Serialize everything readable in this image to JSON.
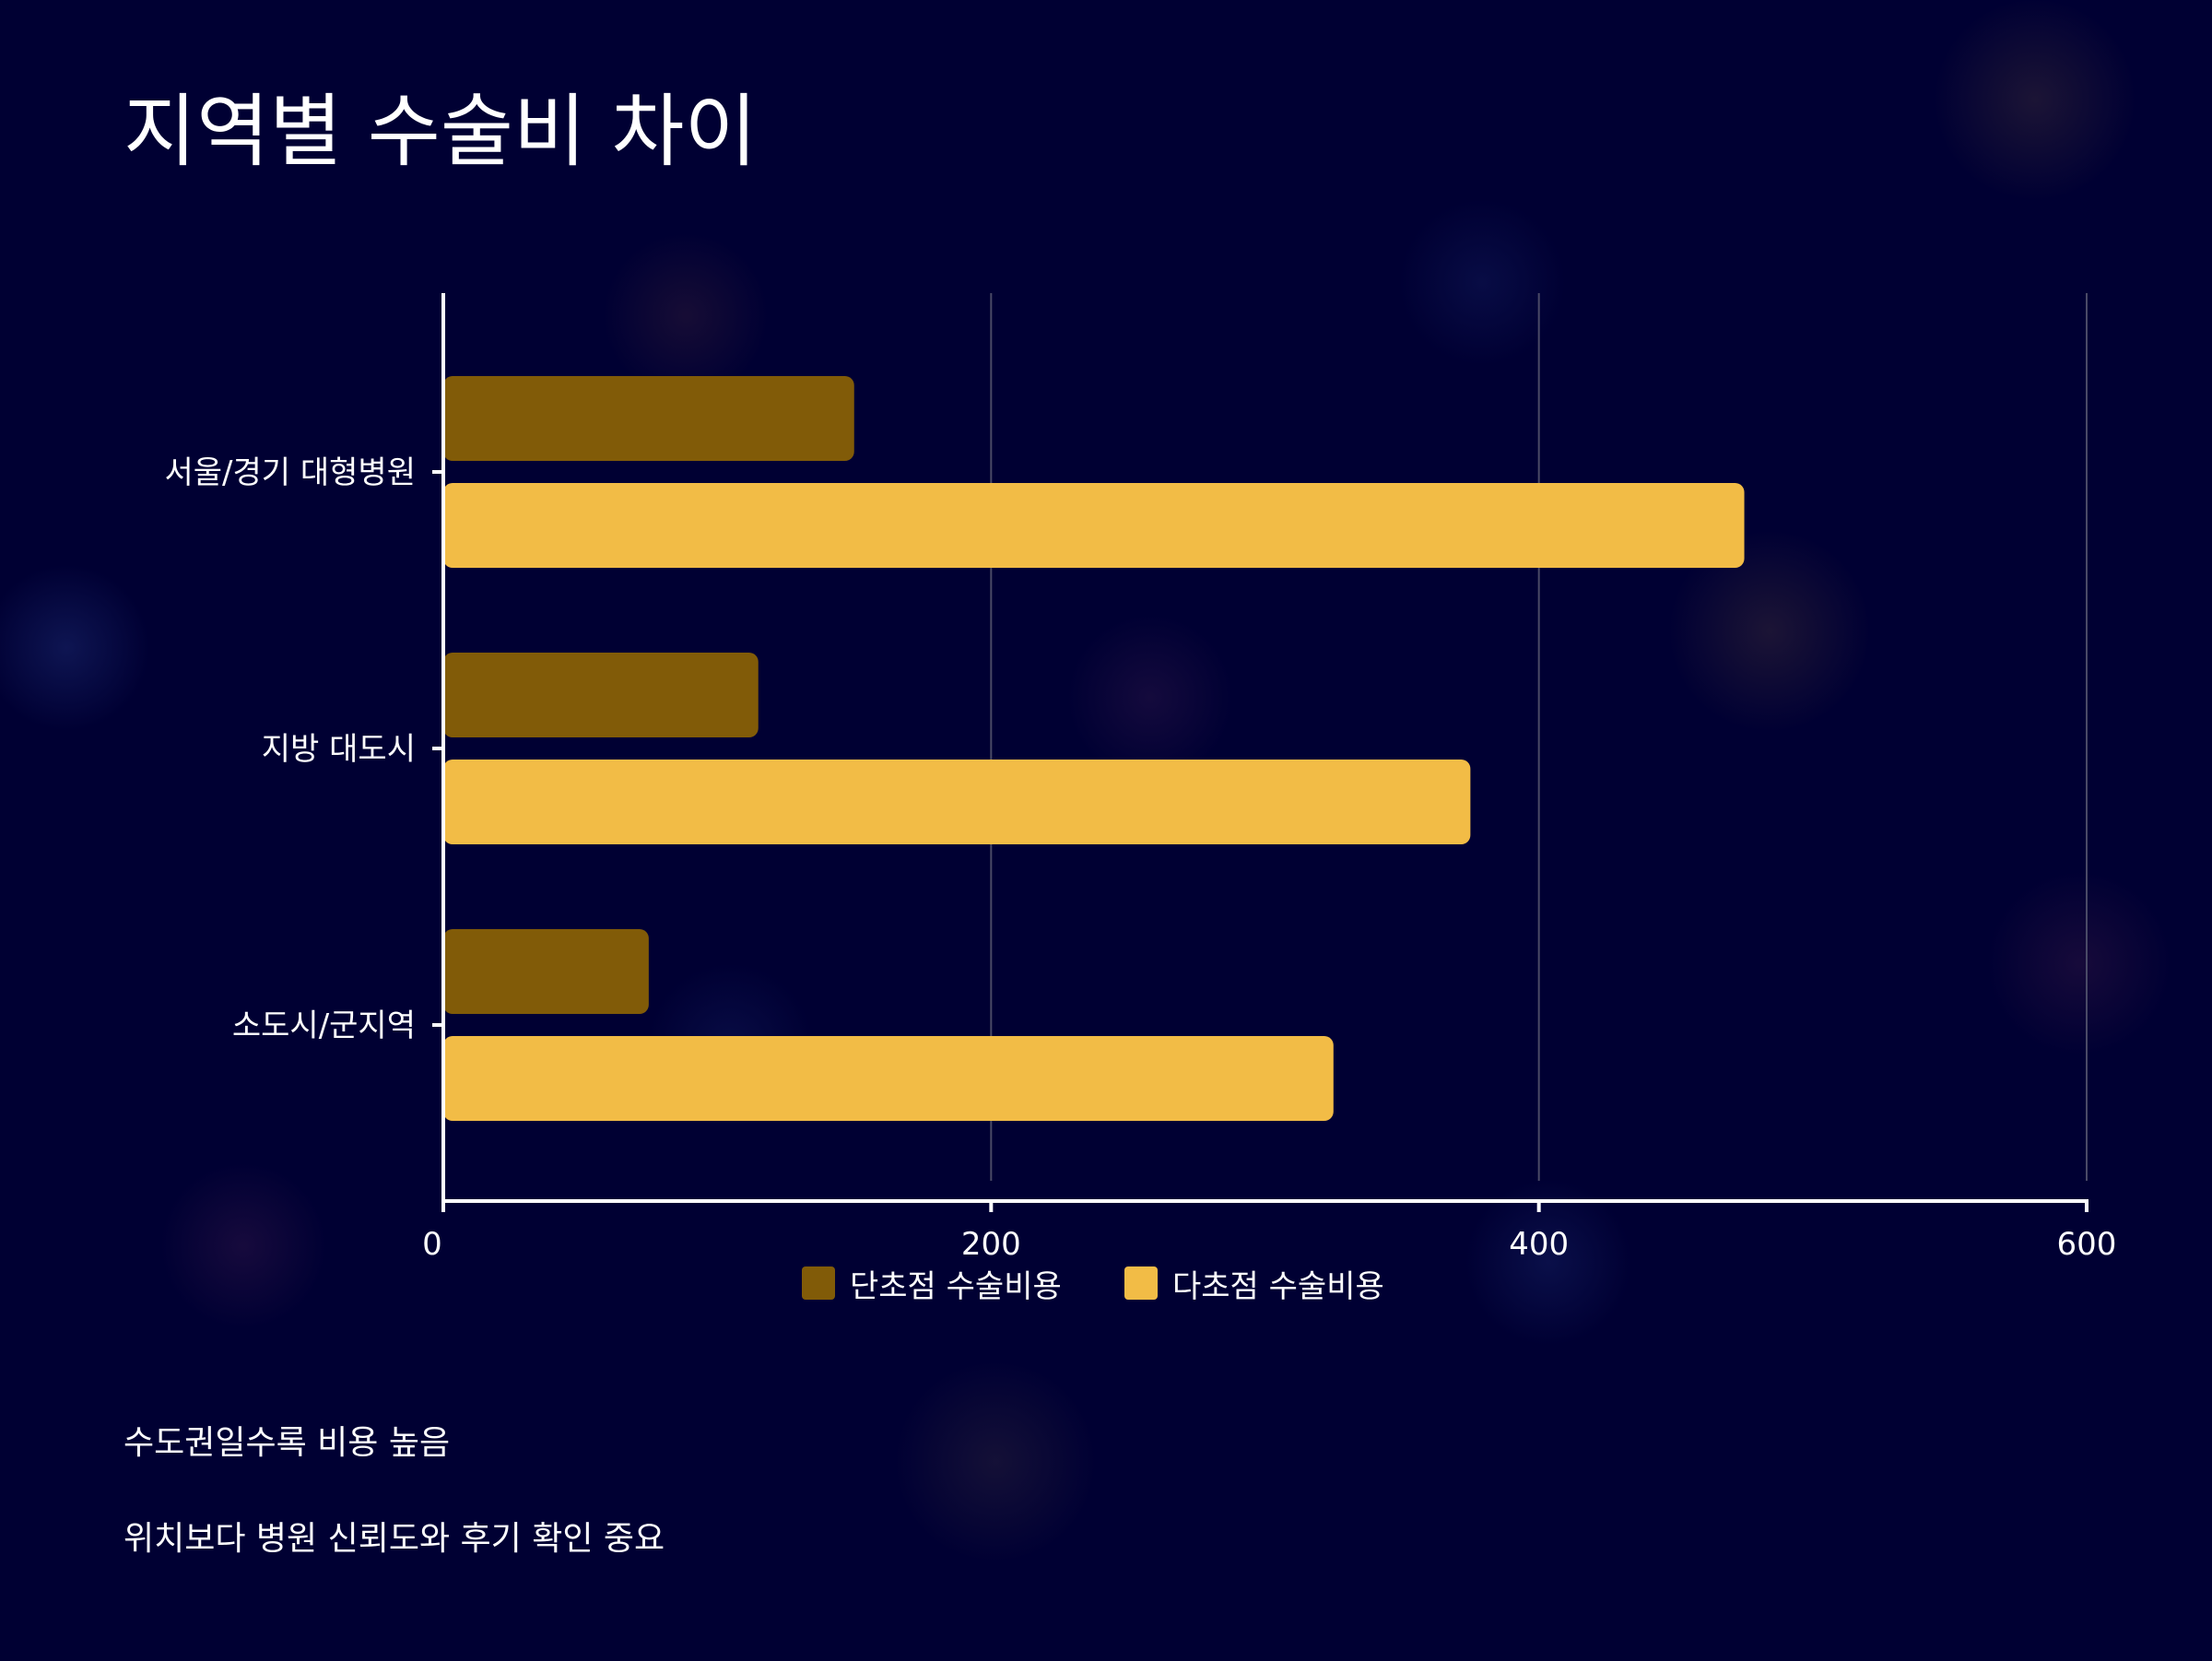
{
  "page": {
    "title": "지역별 수술비 차이",
    "notes": [
      "수도권일수록 비용 높음",
      "위치보다 병원 신뢰도와 후기 확인 중요"
    ]
  },
  "colors": {
    "background": "#000033",
    "single_focus": "#815b08",
    "multi_focus": "#f2bc46",
    "gridline": "#4a4a66",
    "axis": "#ffffff"
  },
  "chart_data": {
    "type": "bar",
    "orientation": "horizontal",
    "title": "",
    "xlabel": "",
    "ylabel": "",
    "categories": [
      "서울/경기 대형병원",
      "지방 대도시",
      "소도시/군지역"
    ],
    "series": [
      {
        "name": "단초점 수술비용",
        "color": "#815b08",
        "values": [
          150,
          115,
          75
        ]
      },
      {
        "name": "다초점 수술비용",
        "color": "#f2bc46",
        "values": [
          475,
          375,
          325
        ]
      }
    ],
    "xlim": [
      0,
      600
    ],
    "xticks": [
      0,
      200,
      400,
      600
    ],
    "xtick_labels": [
      "0",
      "200",
      "400",
      "600"
    ],
    "grid": "vertical",
    "legend": "bottom-center"
  }
}
